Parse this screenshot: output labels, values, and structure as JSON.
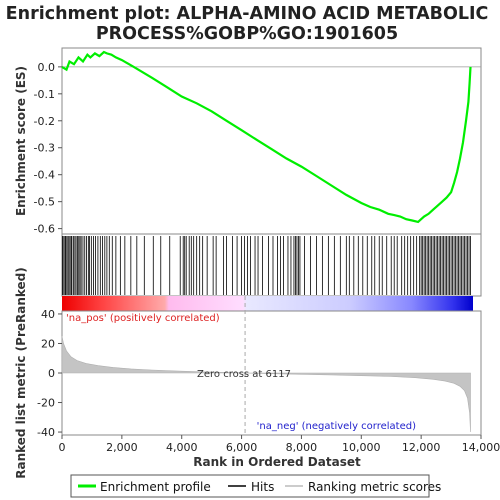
{
  "chart_data": {
    "type": "line",
    "title_line1": "Enrichment plot: ALPHA-AMINO ACID METABOLIC",
    "title_line2": "PROCESS%GOBP%GO:1901605",
    "xlabel": "Rank in Ordered Dataset",
    "ylabel_top": "Enrichment score (ES)",
    "ylabel_bottom": "Ranked list metric (PreRanked)",
    "xlim": [
      0,
      14000
    ],
    "x_ticks": [
      0,
      2000,
      4000,
      6000,
      8000,
      10000,
      12000,
      14000
    ],
    "x_tick_labels": [
      "0",
      "2,000",
      "4,000",
      "6,000",
      "8,000",
      "10,000",
      "12,000",
      "14,000"
    ],
    "es_ylim": [
      -0.62,
      0.07
    ],
    "es_ticks": [
      0.0,
      -0.1,
      -0.2,
      -0.3,
      -0.4,
      -0.5,
      -0.6
    ],
    "es_tick_labels": [
      "0.0",
      "-0.1",
      "-0.2",
      "-0.3",
      "-0.4",
      "-0.5",
      "-0.6"
    ],
    "metric_ylim": [
      -42,
      42
    ],
    "metric_ticks": [
      40,
      20,
      0,
      -20,
      -40
    ],
    "metric_tick_labels": [
      "40",
      "20",
      "0",
      "-20",
      "-40"
    ],
    "series": [
      {
        "name": "Enrichment profile",
        "color": "#00ee00",
        "x": [
          0,
          150,
          250,
          400,
          550,
          700,
          850,
          950,
          1100,
          1250,
          1400,
          1500,
          1650,
          1800,
          2000,
          2400,
          3000,
          3500,
          4000,
          4500,
          5000,
          5500,
          6000,
          6500,
          7000,
          7500,
          8000,
          8500,
          9000,
          9500,
          10000,
          10300,
          10600,
          10900,
          11100,
          11300,
          11500,
          11700,
          11900,
          12000,
          12100,
          12250,
          12400,
          12550,
          12700,
          12850,
          13000,
          13100,
          13200,
          13300,
          13400,
          13500,
          13580,
          13620,
          13650
        ],
        "y": [
          0.0,
          -0.01,
          0.02,
          0.01,
          0.035,
          0.02,
          0.045,
          0.035,
          0.05,
          0.04,
          0.055,
          0.05,
          0.045,
          0.035,
          0.025,
          0.0,
          -0.04,
          -0.075,
          -0.11,
          -0.135,
          -0.165,
          -0.2,
          -0.235,
          -0.27,
          -0.305,
          -0.34,
          -0.37,
          -0.405,
          -0.44,
          -0.475,
          -0.505,
          -0.52,
          -0.53,
          -0.545,
          -0.55,
          -0.555,
          -0.565,
          -0.57,
          -0.575,
          -0.565,
          -0.555,
          -0.545,
          -0.53,
          -0.515,
          -0.5,
          -0.485,
          -0.465,
          -0.43,
          -0.39,
          -0.34,
          -0.28,
          -0.2,
          -0.13,
          -0.06,
          0.0
        ]
      }
    ],
    "hits": [
      20,
      60,
      100,
      130,
      170,
      210,
      260,
      300,
      330,
      380,
      430,
      470,
      520,
      560,
      600,
      640,
      700,
      760,
      820,
      880,
      920,
      980,
      1050,
      1120,
      1200,
      1280,
      1350,
      1430,
      1500,
      1580,
      1680,
      1800,
      1950,
      2100,
      2300,
      2500,
      2750,
      3050,
      3300,
      3600,
      3950,
      4050,
      4100,
      4150,
      4250,
      4320,
      4400,
      4500,
      4600,
      4700,
      4850,
      5050,
      5150,
      5400,
      5500,
      5700,
      5850,
      6000,
      6100,
      6200,
      6300,
      6450,
      6550,
      6700,
      6900,
      7050,
      7200,
      7300,
      7400,
      7550,
      7650,
      7750,
      7800,
      7850,
      7900,
      7950,
      8100,
      8300,
      8500,
      8700,
      8900,
      9100,
      9300,
      9500,
      9600,
      9750,
      9900,
      10050,
      10200,
      10350,
      10450,
      10600,
      10700,
      10850,
      11000,
      11100,
      11200,
      11350,
      11450,
      11550,
      11650,
      11750,
      11850,
      11950,
      12000,
      12050,
      12100,
      12150,
      12200,
      12250,
      12300,
      12350,
      12400,
      12450,
      12500,
      12550,
      12600,
      12650,
      12700,
      12750,
      12800,
      12850,
      12900,
      12950,
      13000,
      13050,
      13100,
      13150,
      13200,
      13250,
      13300,
      13350,
      13400,
      13450,
      13500,
      13550,
      13600,
      13650
    ],
    "metric_curve": {
      "x": [
        0,
        50,
        150,
        300,
        500,
        800,
        1200,
        1700,
        2300,
        3000,
        4000,
        5000,
        6117,
        7000,
        8000,
        9000,
        10000,
        11000,
        11800,
        12400,
        12800,
        13100,
        13300,
        13450,
        13550,
        13620,
        13650
      ],
      "y": [
        25,
        20,
        15,
        11,
        8.5,
        6.5,
        5,
        3.8,
        2.8,
        2,
        1.2,
        0.6,
        0,
        -0.5,
        -0.9,
        -1.3,
        -1.8,
        -2.4,
        -3.2,
        -4.3,
        -5.5,
        -7,
        -9,
        -12,
        -17,
        -27,
        -40
      ]
    },
    "zero_cross_label": "Zero cross at 6117",
    "zero_cross_x": 6117,
    "pos_label": "'na_pos' (positively correlated)",
    "neg_label": "'na_neg' (negatively correlated)",
    "pos_label_color": "#dd2222",
    "neg_label_color": "#2222cc",
    "legend": [
      {
        "label": "Enrichment profile",
        "color": "#00ee00"
      },
      {
        "label": "Hits",
        "color": "#000000"
      },
      {
        "label": "Ranking metric scores",
        "color": "#bbbbbb"
      }
    ]
  }
}
